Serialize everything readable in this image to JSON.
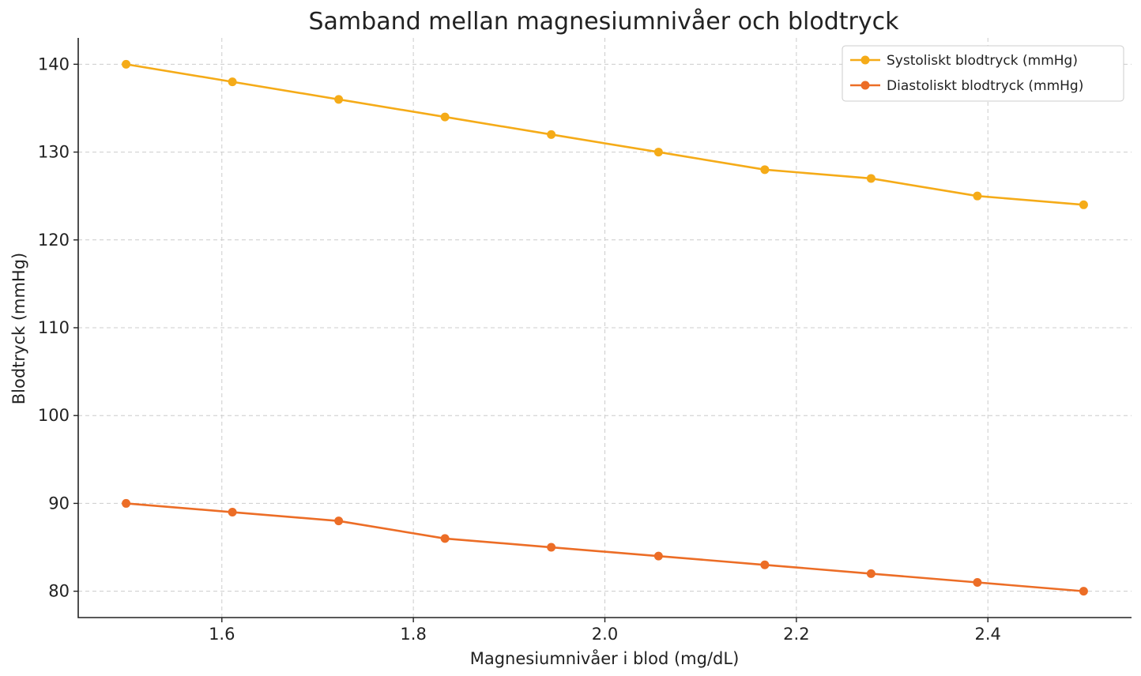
{
  "chart_data": {
    "type": "line",
    "title": "Samband mellan magnesiumnivåer och blodtryck",
    "xlabel": "Magnesiumnivåer i blod (mg/dL)",
    "ylabel": "Blodtryck (mmHg)",
    "xlim": [
      1.45,
      2.55
    ],
    "ylim": [
      77,
      143
    ],
    "x_ticks": [
      "1.6",
      "1.8",
      "2.0",
      "2.2",
      "2.4"
    ],
    "y_ticks": [
      "80",
      "90",
      "100",
      "110",
      "120",
      "130",
      "140"
    ],
    "grid": true,
    "legend_position": "top-right",
    "x": [
      1.5,
      1.611,
      1.722,
      1.833,
      1.944,
      2.056,
      2.167,
      2.278,
      2.389,
      2.5
    ],
    "series": [
      {
        "name": "Systoliskt blodtryck (mmHg)",
        "color": "#f5ab18",
        "values": [
          140,
          138,
          136,
          134,
          132,
          130,
          128,
          127,
          125,
          124
        ]
      },
      {
        "name": "Diastoliskt blodtryck (mmHg)",
        "color": "#ec6d26",
        "values": [
          90,
          89,
          88,
          86,
          85,
          84,
          83,
          82,
          81,
          80
        ]
      }
    ]
  }
}
